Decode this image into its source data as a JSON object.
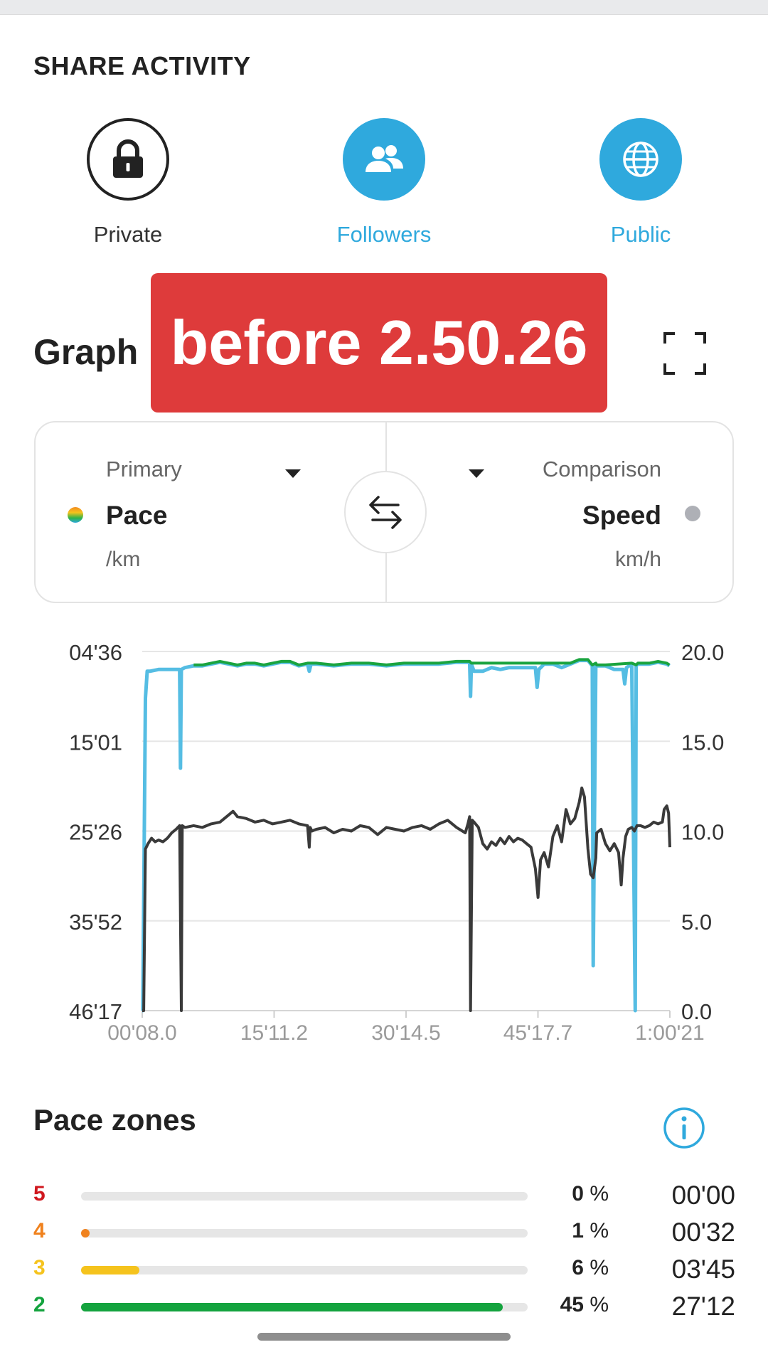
{
  "share": {
    "title": "SHARE ACTIVITY",
    "options": [
      {
        "label": "Private",
        "icon": "lock-icon",
        "selected": false
      },
      {
        "label": "Followers",
        "icon": "followers-icon",
        "selected": true
      },
      {
        "label": "Public",
        "icon": "globe-icon",
        "selected": true
      }
    ]
  },
  "graph": {
    "title": "Graph",
    "banner": "before 2.50.26",
    "primary": {
      "label": "Primary",
      "metric": "Pace",
      "unit": "/km"
    },
    "comparison": {
      "label": "Comparison",
      "metric": "Speed",
      "unit": "km/h"
    }
  },
  "colors": {
    "accent": "#2fa9dd",
    "banner": "#de3b3b",
    "pace_line": "#55bde3",
    "speed_line": "#3a3a3a"
  },
  "chart_data": {
    "type": "line",
    "x_ticks": [
      "00'08.0",
      "15'11.2",
      "30'14.5",
      "45'17.7",
      "1:00'21"
    ],
    "y_left_ticks": [
      "04'36",
      "15'01",
      "25'26",
      "35'52",
      "46'17"
    ],
    "y_right_ticks": [
      "20.0",
      "15.0",
      "10.0",
      "5.0",
      "0.0"
    ],
    "ylim_right": [
      0,
      20
    ],
    "xlim_minutes": [
      0.133,
      60.35
    ],
    "grid": true,
    "series": [
      {
        "name": "Pace",
        "axis": "left",
        "x_minutes": [
          0.13,
          0.2,
          0.5,
          0.7,
          1.0,
          2.0,
          4.4,
          4.5,
          4.6,
          5,
          6,
          7,
          8,
          9,
          10,
          11,
          12,
          13,
          14,
          15,
          16,
          17,
          18,
          19,
          19.2,
          19.4,
          20,
          22,
          24,
          26,
          28,
          30,
          32,
          34,
          36,
          37.5,
          37.6,
          37.7,
          38,
          39,
          40,
          41,
          42,
          44,
          45,
          45.2,
          45.4,
          46,
          47,
          48,
          49,
          50,
          51,
          51.5,
          51.6,
          51.9,
          52,
          53,
          54,
          55,
          55.2,
          55.4,
          56,
          56.4,
          56.5,
          56.7,
          57,
          58,
          59,
          60,
          60.3
        ],
        "speed_equiv_kmh": [
          0,
          0,
          17.4,
          18.9,
          18.9,
          19.0,
          19.0,
          13.5,
          19.0,
          19.1,
          19.2,
          19.2,
          19.3,
          19.4,
          19.3,
          19.2,
          19.3,
          19.3,
          19.2,
          19.3,
          19.4,
          19.4,
          19.2,
          19.3,
          18.9,
          19.3,
          19.3,
          19.2,
          19.3,
          19.3,
          19.2,
          19.3,
          19.3,
          19.3,
          19.4,
          19.4,
          17.5,
          19.3,
          18.9,
          18.9,
          19.1,
          19.0,
          19.1,
          19.1,
          19.1,
          18.0,
          19.0,
          19.3,
          19.3,
          19.1,
          19.3,
          19.5,
          19.5,
          19.2,
          2.5,
          19.3,
          19.2,
          19.2,
          19.0,
          19.0,
          18.2,
          19.1,
          19.3,
          0,
          19.2,
          19.3,
          19.3,
          19.3,
          19.4,
          19.3,
          19.2
        ]
      },
      {
        "name": "Speed",
        "axis": "right",
        "x_minutes": [
          0.13,
          0.3,
          0.5,
          0.8,
          1.2,
          1.6,
          2.0,
          2.5,
          3.0,
          3.5,
          4.0,
          4.4,
          4.6,
          4.7,
          5,
          6,
          7,
          8,
          9,
          10,
          10.5,
          11,
          12,
          13,
          14,
          15,
          16,
          17,
          18,
          19,
          19.2,
          19.3,
          19.5,
          20,
          21,
          22,
          23,
          24,
          25,
          26,
          27,
          28,
          29,
          30,
          31,
          32,
          33,
          34,
          35,
          36,
          37,
          37.3,
          37.5,
          37.6,
          37.8,
          38,
          38.5,
          39,
          39.5,
          40,
          40.5,
          41,
          41.5,
          42,
          42.5,
          43,
          43.5,
          44,
          44.5,
          45,
          45.3,
          45.6,
          46,
          46.5,
          47,
          47.5,
          48,
          48.5,
          49,
          49.5,
          50,
          50.3,
          50.6,
          51,
          51.3,
          51.6,
          51.9,
          52,
          52.5,
          53,
          53.5,
          54,
          54.3,
          54.5,
          54.8,
          55,
          55.3,
          55.6,
          56,
          56.3,
          56.6,
          57,
          57.5,
          58,
          58.5,
          59,
          59.5,
          59.7,
          60,
          60.2,
          60.35
        ],
        "values": [
          0,
          0,
          9.0,
          9.3,
          9.6,
          9.4,
          9.5,
          9.4,
          9.6,
          9.9,
          10.1,
          10.3,
          0,
          10.3,
          10.2,
          10.3,
          10.2,
          10.4,
          10.5,
          10.9,
          11.1,
          10.8,
          10.7,
          10.5,
          10.6,
          10.4,
          10.5,
          10.6,
          10.4,
          10.3,
          9.1,
          10.2,
          10.0,
          10.1,
          10.2,
          9.9,
          10.1,
          10.0,
          10.3,
          10.2,
          9.8,
          10.2,
          10.1,
          10.0,
          10.2,
          10.3,
          10.1,
          10.4,
          10.6,
          10.2,
          9.9,
          10.4,
          10.8,
          0,
          10.6,
          10.5,
          10.2,
          9.3,
          9.0,
          9.4,
          9.2,
          9.6,
          9.3,
          9.7,
          9.4,
          9.6,
          9.5,
          9.3,
          9.1,
          7.9,
          6.3,
          8.4,
          8.8,
          8.0,
          9.7,
          10.3,
          9.4,
          11.2,
          10.4,
          10.7,
          11.6,
          12.4,
          11.9,
          9.0,
          7.6,
          7.4,
          8.5,
          9.9,
          10.1,
          9.3,
          8.9,
          9.3,
          9.0,
          8.8,
          7.0,
          8.5,
          9.7,
          10.1,
          10.2,
          10.0,
          10.3,
          10.3,
          10.2,
          10.3,
          10.5,
          10.4,
          10.5,
          11.2,
          11.4,
          11.0,
          9.1
        ]
      }
    ]
  },
  "zones": {
    "title": "Pace zones",
    "rows": [
      {
        "zone": "5",
        "percent": "0",
        "fraction": 0.0,
        "time": "00'00",
        "color": "#d0181f"
      },
      {
        "zone": "4",
        "percent": "1",
        "fraction": 0.01,
        "time": "00'32",
        "color": "#f0821e"
      },
      {
        "zone": "3",
        "percent": "6",
        "fraction": 0.13,
        "time": "03'45",
        "color": "#f5c31d"
      },
      {
        "zone": "2",
        "percent": "45",
        "fraction": 0.945,
        "time": "27'12",
        "color": "#14a33e"
      }
    ],
    "unit": "%"
  }
}
